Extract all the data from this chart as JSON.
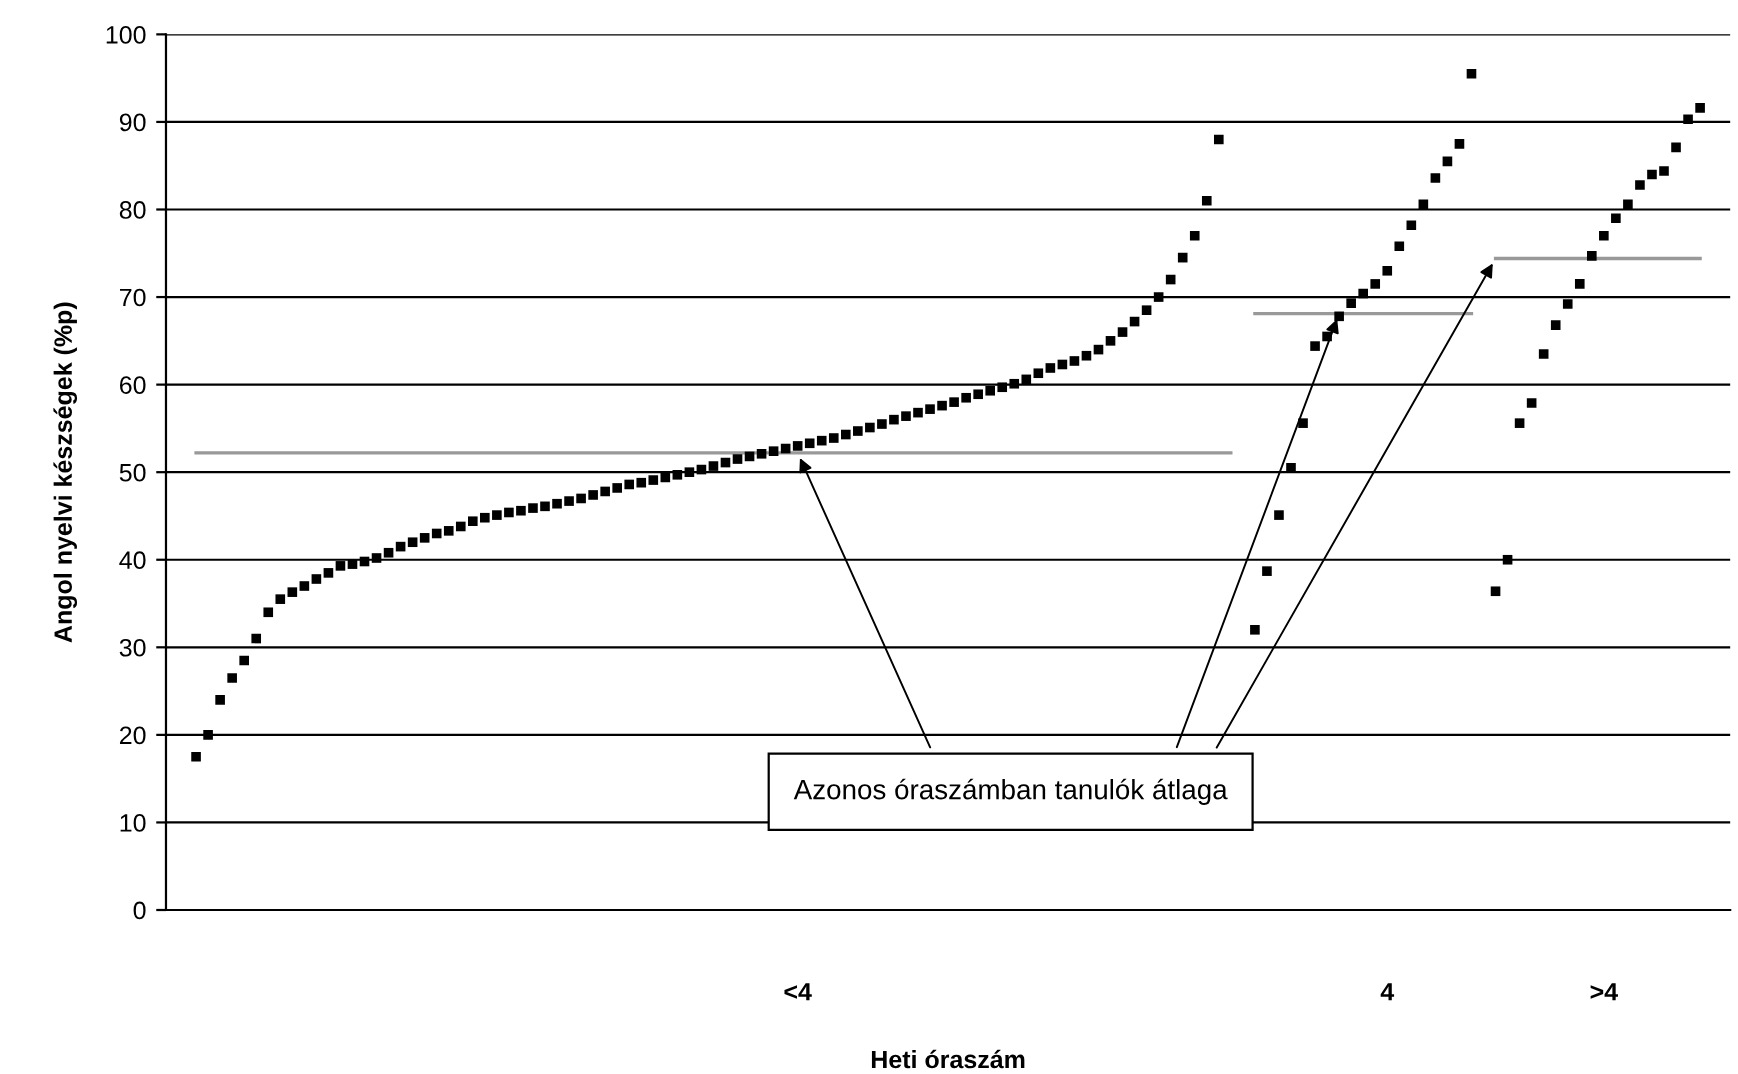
{
  "chart_data": {
    "type": "scatter",
    "xlabel": "Heti óraszám",
    "ylabel": "Angol nyelvi készségek (%p)",
    "categories": [
      null,
      null,
      null,
      null,
      null,
      null,
      null,
      null,
      null,
      null,
      null,
      null,
      null,
      null,
      null,
      null,
      null,
      null,
      null,
      null,
      null,
      null,
      null,
      null,
      null,
      null,
      null,
      null,
      null,
      null,
      null,
      null,
      null,
      null,
      null,
      null,
      null,
      null,
      null,
      null,
      null,
      null,
      null,
      null,
      null,
      null,
      null,
      null,
      null,
      null,
      null,
      null,
      "<4",
      null,
      null,
      null,
      null,
      null,
      null,
      null,
      null,
      null,
      null,
      null,
      null,
      null,
      null,
      null,
      null,
      null,
      null,
      null,
      null,
      null,
      null,
      null,
      null,
      null,
      null,
      null,
      null,
      null,
      null,
      null,
      null,
      null,
      null,
      null,
      null,
      null,
      null,
      null,
      null,
      null,
      null,
      null,
      null,
      null,
      null,
      null,
      null,
      "4",
      null,
      null,
      null,
      null,
      null,
      null,
      null,
      null,
      null,
      null,
      null,
      null,
      null,
      null,
      null,
      null,
      null,
      ">4",
      null,
      null,
      null,
      null,
      null,
      null,
      null,
      null,
      null,
      null
    ],
    "series": [
      {
        "color": "#000000",
        "marker": "square",
        "values": [
          null,
          null,
          17.5,
          20,
          24,
          26.5,
          28.5,
          31,
          34,
          35.5,
          36.3,
          37,
          37.8,
          38.5,
          39.3,
          39.5,
          39.8,
          40.2,
          40.8,
          41.5,
          42,
          42.5,
          43,
          43.3,
          43.8,
          44.4,
          44.8,
          45.1,
          45.4,
          45.6,
          45.9,
          46.1,
          46.4,
          46.7,
          47,
          47.4,
          47.8,
          48.2,
          48.6,
          48.8,
          49.1,
          49.4,
          49.7,
          50,
          50.3,
          50.7,
          51.1,
          51.5,
          51.8,
          52.1,
          52.4,
          52.7,
          53,
          53.3,
          53.6,
          53.9,
          54.3,
          54.7,
          55.1,
          55.5,
          56,
          56.4,
          56.8,
          57.2,
          57.6,
          58,
          58.5,
          58.9,
          59.3,
          59.7,
          60.1,
          60.6,
          61.3,
          61.9,
          62.3,
          62.7,
          63.3,
          64,
          65,
          66,
          67.2,
          68.5,
          70,
          72,
          74.5,
          77,
          81,
          88,
          null,
          null,
          32,
          38.7,
          45.1,
          50.5,
          55.6,
          64.4,
          65.5,
          67.8,
          69.3,
          70.4,
          71.5,
          73,
          75.8,
          78.2,
          80.6,
          83.6,
          85.5,
          87.5,
          95.5,
          null,
          36.4,
          40,
          55.6,
          57.9,
          63.5,
          66.8,
          69.2,
          71.5,
          74.7,
          77,
          79,
          80.6,
          82.8,
          84,
          84.4,
          87.1,
          90.3,
          91.6,
          null,
          null
        ]
      },
      {
        "type": "line",
        "color": "#999999",
        "values": [
          null,
          null,
          52.2,
          52.2,
          52.2,
          52.2,
          52.2,
          52.2,
          52.2,
          52.2,
          52.2,
          52.2,
          52.2,
          52.2,
          52.2,
          52.2,
          52.2,
          52.2,
          52.2,
          52.2,
          52.2,
          52.2,
          52.2,
          52.2,
          52.2,
          52.2,
          52.2,
          52.2,
          52.2,
          52.2,
          52.2,
          52.2,
          52.2,
          52.2,
          52.2,
          52.2,
          52.2,
          52.2,
          52.2,
          52.2,
          52.2,
          52.2,
          52.2,
          52.2,
          52.2,
          52.2,
          52.2,
          52.2,
          52.2,
          52.2,
          52.2,
          52.2,
          52.2,
          52.2,
          52.2,
          52.2,
          52.2,
          52.2,
          52.2,
          52.2,
          52.2,
          52.2,
          52.2,
          52.2,
          52.2,
          52.2,
          52.2,
          52.2,
          52.2,
          52.2,
          52.2,
          52.2,
          52.2,
          52.2,
          52.2,
          52.2,
          52.2,
          52.2,
          52.2,
          52.2,
          52.2,
          52.2,
          52.2,
          52.2,
          52.2,
          52.2,
          52.2,
          52.2,
          52.2,
          null,
          null,
          null,
          null,
          null,
          null,
          null,
          null,
          null,
          null,
          null,
          null,
          null,
          null,
          null,
          null,
          null,
          null,
          null,
          null,
          null,
          null,
          null,
          null,
          null,
          null,
          null,
          null,
          null,
          null,
          null,
          null,
          null,
          null,
          null,
          null,
          null,
          null,
          null,
          null,
          null
        ]
      },
      {
        "type": "line",
        "color": "#999999",
        "values": [
          null,
          null,
          null,
          null,
          null,
          null,
          null,
          null,
          null,
          null,
          null,
          null,
          null,
          null,
          null,
          null,
          null,
          null,
          null,
          null,
          null,
          null,
          null,
          null,
          null,
          null,
          null,
          null,
          null,
          null,
          null,
          null,
          null,
          null,
          null,
          null,
          null,
          null,
          null,
          null,
          null,
          null,
          null,
          null,
          null,
          null,
          null,
          null,
          null,
          null,
          null,
          null,
          null,
          null,
          null,
          null,
          null,
          null,
          null,
          null,
          null,
          null,
          null,
          null,
          null,
          null,
          null,
          null,
          null,
          null,
          null,
          null,
          null,
          null,
          null,
          null,
          null,
          null,
          null,
          null,
          null,
          null,
          null,
          null,
          null,
          null,
          null,
          null,
          null,
          null,
          68.1,
          68.1,
          68.1,
          68.1,
          68.1,
          68.1,
          68.1,
          68.1,
          68.1,
          68.1,
          68.1,
          68.1,
          68.1,
          68.1,
          68.1,
          68.1,
          68.1,
          68.1,
          68.1,
          null,
          null,
          null,
          null,
          null,
          null,
          null,
          null,
          null,
          null,
          null,
          null,
          null,
          null,
          null,
          null,
          null,
          null,
          null,
          null,
          null
        ]
      },
      {
        "type": "line",
        "color": "#999999",
        "values": [
          null,
          null,
          null,
          null,
          null,
          null,
          null,
          null,
          null,
          null,
          null,
          null,
          null,
          null,
          null,
          null,
          null,
          null,
          null,
          null,
          null,
          null,
          null,
          null,
          null,
          null,
          null,
          null,
          null,
          null,
          null,
          null,
          null,
          null,
          null,
          null,
          null,
          null,
          null,
          null,
          null,
          null,
          null,
          null,
          null,
          null,
          null,
          null,
          null,
          null,
          null,
          null,
          null,
          null,
          null,
          null,
          null,
          null,
          null,
          null,
          null,
          null,
          null,
          null,
          null,
          null,
          null,
          null,
          null,
          null,
          null,
          null,
          null,
          null,
          null,
          null,
          null,
          null,
          null,
          null,
          null,
          null,
          null,
          null,
          null,
          null,
          null,
          null,
          null,
          null,
          null,
          null,
          null,
          null,
          null,
          null,
          null,
          null,
          null,
          null,
          null,
          null,
          null,
          null,
          null,
          null,
          null,
          null,
          null,
          null,
          74.4,
          74.4,
          74.4,
          74.4,
          74.4,
          74.4,
          74.4,
          74.4,
          74.4,
          74.4,
          74.4,
          74.4,
          74.4,
          74.4,
          74.4,
          74.4,
          74.4,
          74.4,
          null,
          null
        ]
      }
    ],
    "annotations": [
      {
        "text": "Azonos óraszámban tanulók átlaga",
        "x": "<4",
        "y": 52.2
      }
    ],
    "ylim": [
      0,
      100
    ],
    "yticks": [
      0,
      10,
      20,
      30,
      40,
      50,
      60,
      70,
      80,
      90,
      100
    ],
    "grid": "y",
    "legend": false
  }
}
